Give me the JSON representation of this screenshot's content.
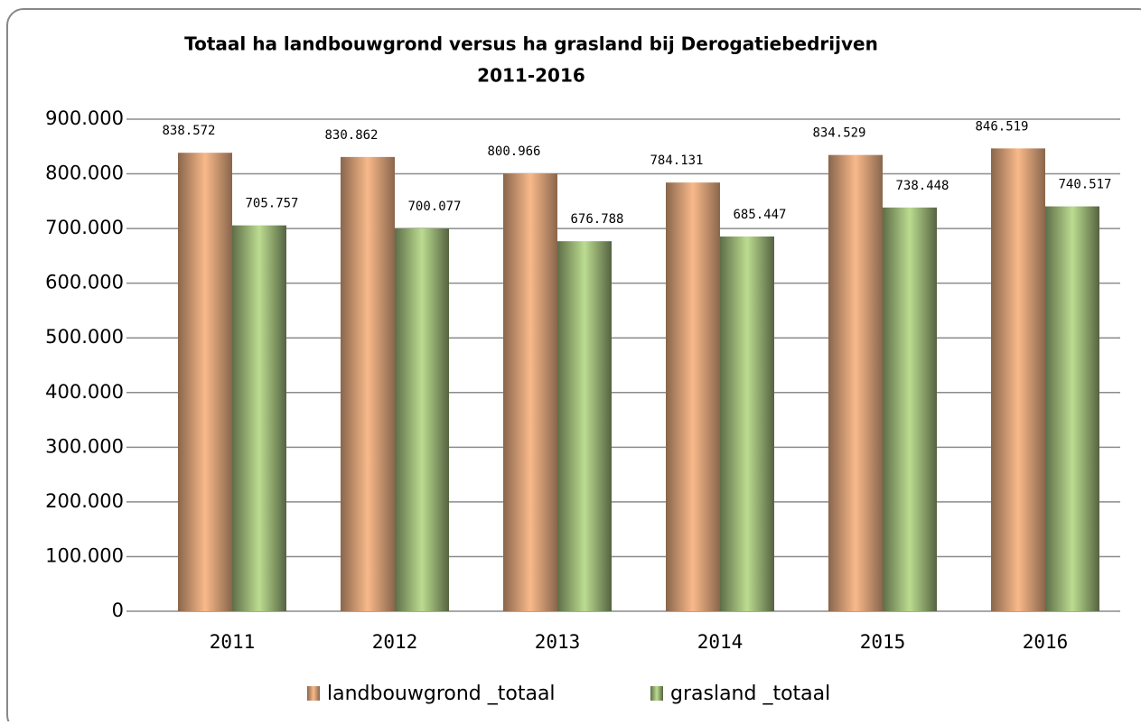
{
  "chart_data": {
    "type": "bar",
    "title": "Totaal ha landbouwgrond  versus ha grasland bij Derogatiebedrijven",
    "subtitle": "2011-2016",
    "categories": [
      "2011",
      "2012",
      "2013",
      "2014",
      "2015",
      "2016"
    ],
    "series": [
      {
        "name": "landbouwgrond _totaal",
        "color": "#f9b98a",
        "values": [
          838572,
          830862,
          800966,
          784131,
          834529,
          846519
        ],
        "value_labels": [
          "838.572",
          "830.862",
          "800.966",
          "784.131",
          "834.529",
          "846.519"
        ]
      },
      {
        "name": "grasland _totaal",
        "color": "#bcdc90",
        "values": [
          705757,
          700077,
          676788,
          685447,
          738448,
          740517
        ],
        "value_labels": [
          "705.757",
          "700.077",
          "676.788",
          "685.447",
          "738.448",
          "740.517"
        ]
      }
    ],
    "ylim": [
      0,
      900000
    ],
    "yticks": [
      {
        "value": 0,
        "label": "0"
      },
      {
        "value": 100000,
        "label": "100.000"
      },
      {
        "value": 200000,
        "label": "200.000"
      },
      {
        "value": 300000,
        "label": "300.000"
      },
      {
        "value": 400000,
        "label": "400.000"
      },
      {
        "value": 500000,
        "label": "500.000"
      },
      {
        "value": 600000,
        "label": "600.000"
      },
      {
        "value": 700000,
        "label": "700.000"
      },
      {
        "value": 800000,
        "label": "800.000"
      },
      {
        "value": 900000,
        "label": "900.000"
      }
    ],
    "grid": true,
    "legend": "bottom"
  }
}
